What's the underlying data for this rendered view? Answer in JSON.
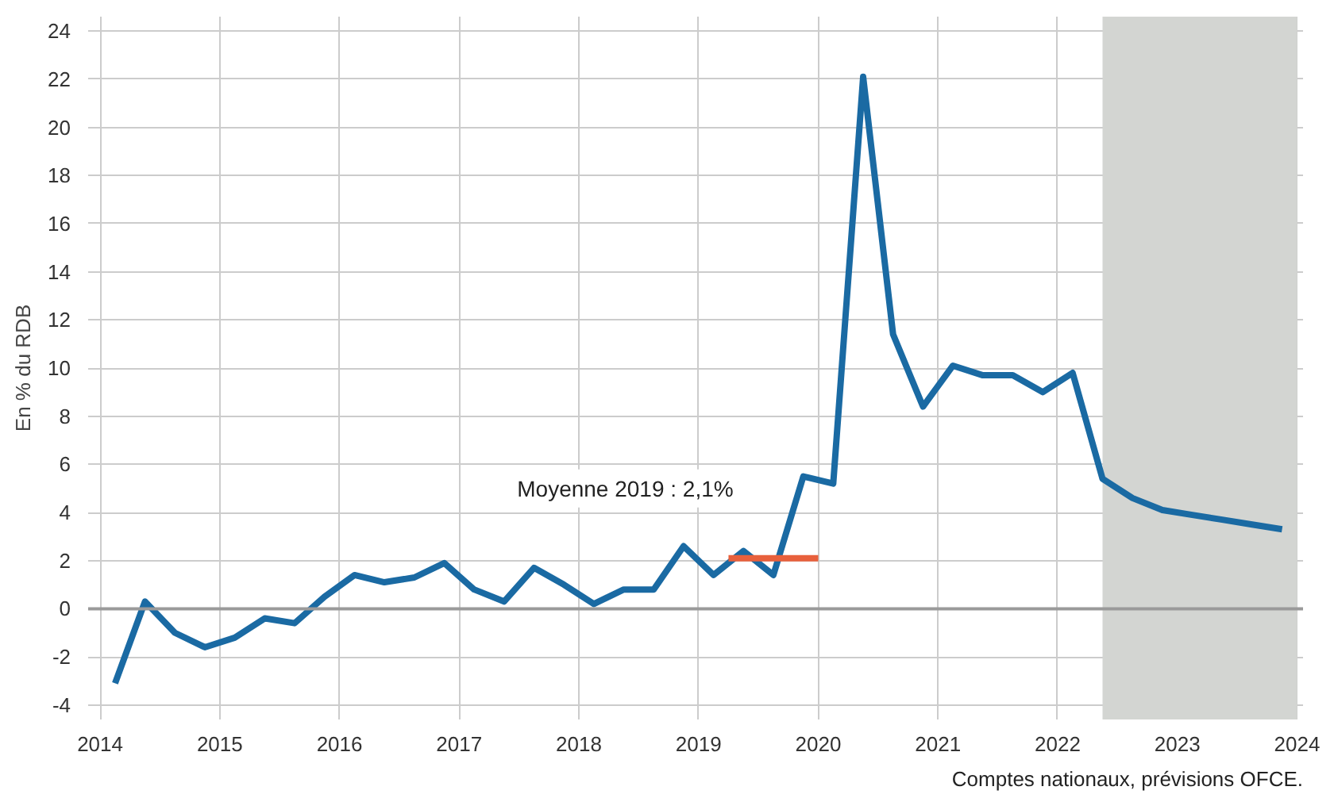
{
  "chart_data": {
    "type": "line",
    "ylabel": "En % du RDB",
    "x": [
      2014.125,
      2014.375,
      2014.625,
      2014.875,
      2015.125,
      2015.375,
      2015.625,
      2015.875,
      2016.125,
      2016.375,
      2016.625,
      2016.875,
      2017.125,
      2017.375,
      2017.625,
      2017.875,
      2018.125,
      2018.375,
      2018.625,
      2018.875,
      2019.125,
      2019.375,
      2019.625,
      2019.875,
      2020.125,
      2020.375,
      2020.625,
      2020.875,
      2021.125,
      2021.375,
      2021.625,
      2021.875,
      2022.125,
      2022.375,
      2022.625,
      2022.875,
      2023.125,
      2023.375,
      2023.625,
      2023.875
    ],
    "series": [
      {
        "color": "#1a6aa3",
        "values": [
          -3.1,
          0.3,
          -1.0,
          -1.6,
          -1.2,
          -0.4,
          -0.6,
          0.5,
          1.4,
          1.1,
          1.3,
          1.9,
          0.8,
          0.3,
          1.7,
          1.0,
          0.2,
          0.8,
          0.8,
          2.6,
          1.4,
          2.4,
          1.4,
          5.5,
          5.2,
          22.1,
          11.4,
          8.4,
          10.1,
          9.7,
          9.7,
          9.0,
          9.8,
          5.4,
          4.6,
          4.1,
          3.9,
          3.7,
          3.5,
          3.3
        ]
      },
      {
        "type": "line",
        "color": "#e8603c",
        "x": [
          2019.25,
          2020.0
        ],
        "values": [
          2.1,
          2.1
        ]
      }
    ],
    "xlim": [
      2013.9,
      2024.05
    ],
    "xticks": [
      2014,
      2015,
      2016,
      2017,
      2018,
      2019,
      2020,
      2021,
      2022,
      2023,
      2024
    ],
    "ylim": [
      -4.6,
      24.6
    ],
    "yticks": [
      -4,
      -2,
      0,
      2,
      4,
      6,
      8,
      10,
      12,
      14,
      16,
      18,
      20,
      22,
      24
    ],
    "grid": true,
    "marker": "none",
    "line_style": "solid",
    "ref_lines": [
      {
        "axis": "y",
        "value": 0,
        "color": "#9a9a9a"
      }
    ],
    "bands": [
      {
        "axis": "x",
        "from": 2022.375,
        "to": 2024.0,
        "color": "#d3d5d2"
      }
    ],
    "annotations": [
      {
        "text": "Moyenne 2019 : 2,1%",
        "x": 2019.25,
        "y": 2.1
      },
      "Comptes nationaux, prévisions OFCE."
    ]
  }
}
